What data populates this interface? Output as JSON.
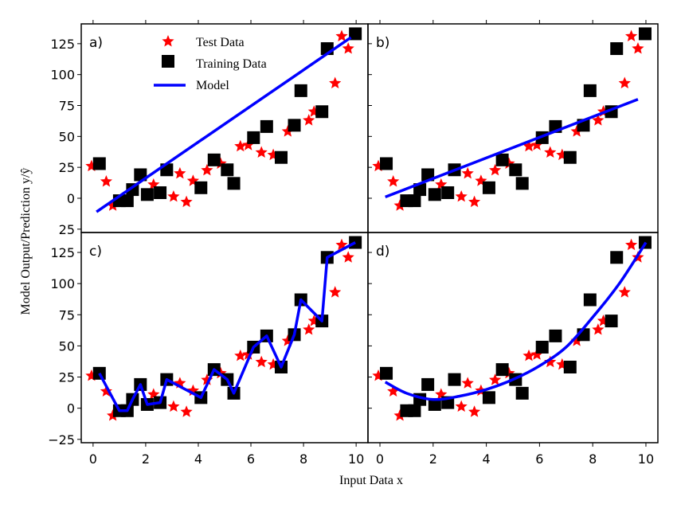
{
  "chart_data": {
    "type": "scatter",
    "xlabel": "Input Data x",
    "ylabel": "Model Output/Prediction y/ŷ",
    "xlim": [
      -0.45,
      10.45
    ],
    "ylim": [
      -27.7,
      141
    ],
    "x_ticks": [
      "0",
      "2",
      "4",
      "6",
      "8",
      "10"
    ],
    "y_ticks_top": [
      "0",
      "25",
      "50",
      "75",
      "100",
      "125"
    ],
    "y_tick_top_clipped": "25",
    "y_ticks_bottom": [
      "−25",
      "0",
      "25",
      "50",
      "75",
      "100",
      "125"
    ],
    "legend": {
      "placement": "top-center of panel a",
      "entries": [
        "Test Data",
        "Training Data",
        "Model"
      ]
    },
    "colors": {
      "test": "#ff0000",
      "training": "#000000",
      "model": "#0000ff"
    },
    "test_data": {
      "name": "Test Data",
      "x": [
        -0.06,
        0.5,
        0.75,
        2.3,
        3.06,
        3.3,
        3.55,
        3.8,
        4.33,
        4.85,
        5.6,
        5.9,
        6.4,
        6.85,
        7.4,
        8.2,
        8.4,
        9.2,
        9.45,
        9.7
      ],
      "y": [
        26,
        13.5,
        -6,
        11,
        1.3,
        20,
        -3,
        14,
        22.6,
        28,
        42,
        43,
        37,
        35,
        54,
        63,
        70,
        93,
        131,
        121
      ]
    },
    "training_data": {
      "name": "Training Data",
      "x": [
        0.24,
        1.0,
        1.3,
        1.5,
        1.8,
        2.06,
        2.55,
        2.8,
        4.1,
        4.6,
        5.1,
        5.35,
        6.1,
        6.6,
        7.15,
        7.65,
        7.9,
        8.7,
        8.9,
        9.97
      ],
      "y": [
        28,
        -2,
        -2,
        7,
        19,
        3,
        4.5,
        23,
        8.5,
        31,
        23,
        12,
        49,
        58,
        33,
        59,
        87,
        70,
        121,
        133
      ]
    },
    "panels": [
      {
        "label": "a)",
        "model": {
          "x": [
            0.13,
            9.8
          ],
          "y": [
            -11,
            130
          ]
        }
      },
      {
        "label": "b)",
        "model": {
          "x": [
            0.2,
            9.7
          ],
          "y": [
            1,
            80
          ]
        }
      },
      {
        "label": "c)",
        "model": {
          "x": [
            0.24,
            1.0,
            1.3,
            1.5,
            1.8,
            2.06,
            2.55,
            2.8,
            4.1,
            4.6,
            5.1,
            5.35,
            6.1,
            6.6,
            7.15,
            7.65,
            7.9,
            8.7,
            8.9,
            9.97
          ],
          "y": [
            28,
            -2,
            -2,
            7,
            19,
            3,
            4.5,
            23,
            8.5,
            31,
            23,
            12,
            49,
            58,
            33,
            59,
            87,
            70,
            121,
            133
          ]
        }
      },
      {
        "label": "d)",
        "model": {
          "x": [
            0.2,
            1,
            2,
            3,
            4,
            5,
            6,
            7,
            8,
            9,
            10
          ],
          "y": [
            21,
            12,
            7,
            9.7,
            15,
            23,
            34,
            49,
            73,
            100,
            133
          ]
        }
      }
    ]
  }
}
